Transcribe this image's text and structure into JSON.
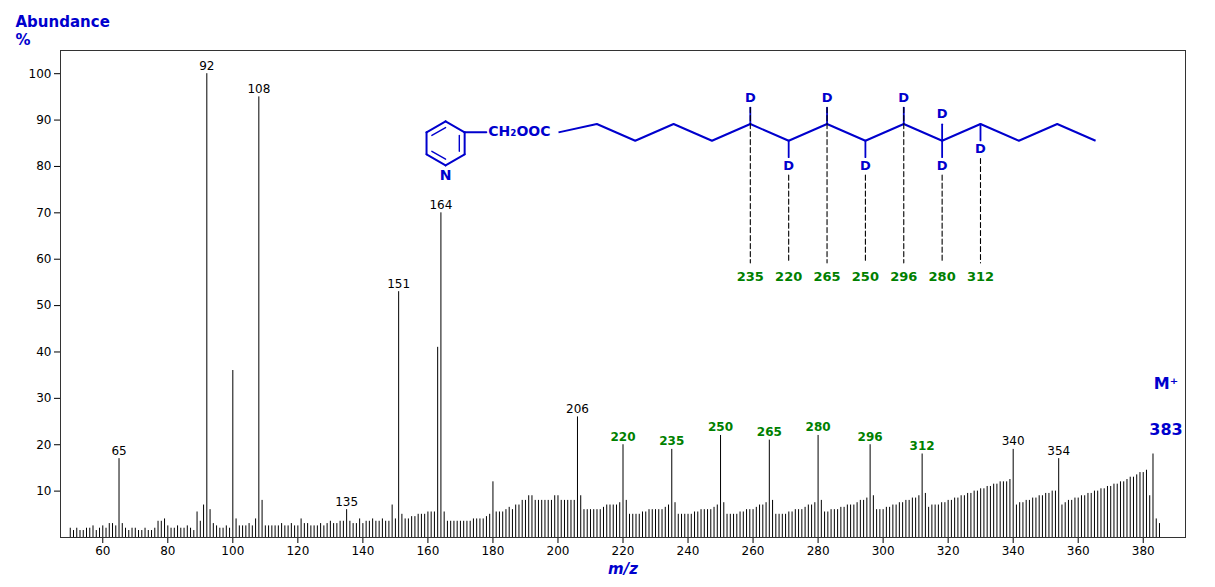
{
  "chart_data": {
    "type": "stem",
    "xlabel": "m/z",
    "ylabel_lines": [
      "Abundance",
      "%"
    ],
    "label_color": "#0000CD",
    "color": "#000000",
    "grid": false,
    "xlim": [
      47,
      393
    ],
    "ylim": [
      0,
      105
    ],
    "xticks": [
      60,
      80,
      100,
      120,
      140,
      160,
      180,
      200,
      220,
      240,
      260,
      280,
      300,
      320,
      340,
      360,
      380
    ],
    "yticks": [
      10,
      20,
      30,
      40,
      50,
      60,
      70,
      80,
      90,
      100
    ],
    "x": [
      50,
      51,
      52,
      53,
      54,
      55,
      56,
      57,
      58,
      59,
      60,
      61,
      62,
      63,
      64,
      65,
      66,
      67,
      68,
      69,
      70,
      71,
      72,
      73,
      74,
      75,
      76,
      77,
      78,
      79,
      80,
      81,
      82,
      83,
      84,
      85,
      86,
      87,
      88,
      89,
      90,
      91,
      92,
      93,
      94,
      95,
      96,
      97,
      98,
      99,
      100,
      101,
      102,
      103,
      104,
      105,
      106,
      107,
      108,
      109,
      110,
      111,
      112,
      113,
      114,
      115,
      116,
      117,
      118,
      119,
      120,
      121,
      122,
      123,
      124,
      125,
      126,
      127,
      128,
      129,
      130,
      131,
      132,
      133,
      134,
      135,
      136,
      137,
      138,
      139,
      140,
      141,
      142,
      143,
      144,
      145,
      146,
      147,
      148,
      149,
      150,
      151,
      152,
      153,
      154,
      155,
      156,
      157,
      158,
      159,
      160,
      161,
      162,
      163,
      164,
      165,
      166,
      167,
      168,
      169,
      170,
      171,
      172,
      173,
      174,
      175,
      176,
      177,
      178,
      179,
      180,
      181,
      182,
      183,
      184,
      185,
      186,
      187,
      188,
      189,
      190,
      191,
      192,
      193,
      194,
      195,
      196,
      197,
      198,
      199,
      200,
      201,
      202,
      203,
      204,
      205,
      206,
      207,
      208,
      209,
      210,
      211,
      212,
      213,
      214,
      215,
      216,
      217,
      218,
      219,
      220,
      221,
      222,
      223,
      224,
      225,
      226,
      227,
      228,
      229,
      230,
      231,
      232,
      233,
      234,
      235,
      236,
      237,
      238,
      239,
      240,
      241,
      242,
      243,
      244,
      245,
      246,
      247,
      248,
      249,
      250,
      251,
      252,
      253,
      254,
      255,
      256,
      257,
      258,
      259,
      260,
      261,
      262,
      263,
      264,
      265,
      266,
      267,
      268,
      269,
      270,
      271,
      272,
      273,
      274,
      275,
      276,
      277,
      278,
      279,
      280,
      281,
      282,
      283,
      284,
      285,
      286,
      287,
      288,
      289,
      290,
      291,
      292,
      293,
      294,
      295,
      296,
      297,
      298,
      299,
      300,
      301,
      302,
      303,
      304,
      305,
      306,
      307,
      308,
      309,
      310,
      311,
      312,
      313,
      314,
      315,
      316,
      317,
      318,
      319,
      320,
      321,
      322,
      323,
      324,
      325,
      326,
      327,
      328,
      329,
      330,
      331,
      332,
      333,
      334,
      335,
      336,
      337,
      338,
      339,
      340,
      341,
      342,
      343,
      344,
      345,
      346,
      347,
      348,
      349,
      350,
      351,
      352,
      353,
      354,
      355,
      356,
      357,
      358,
      359,
      360,
      361,
      362,
      363,
      364,
      365,
      366,
      367,
      368,
      369,
      370,
      371,
      372,
      373,
      374,
      375,
      376,
      377,
      378,
      379,
      380,
      381,
      382,
      383,
      384,
      385
    ],
    "values": [
      2,
      1.5,
      2,
      1.5,
      1.5,
      2,
      2,
      2.5,
      1.5,
      2,
      2.5,
      2,
      3,
      3,
      2.5,
      17,
      3,
      2,
      1.5,
      2,
      2,
      1.5,
      1.5,
      2,
      1.5,
      1.5,
      2,
      3.5,
      3.5,
      4,
      2.5,
      2,
      2,
      2.5,
      2,
      2,
      2.5,
      2,
      1.5,
      5.5,
      3.5,
      7,
      100,
      6,
      3,
      2.5,
      2,
      2,
      2.5,
      2,
      36,
      4,
      2.5,
      2.5,
      2.5,
      3,
      2.5,
      4,
      95,
      8,
      2.5,
      2.5,
      2.5,
      2.5,
      2.5,
      3,
      2.5,
      2.5,
      3,
      2.5,
      2.5,
      4,
      3,
      3,
      2.5,
      2.5,
      2.5,
      3,
      2.5,
      3,
      3.5,
      3,
      3,
      3.5,
      3.5,
      6,
      3.5,
      3,
      3,
      4,
      3,
      3.5,
      3.5,
      4,
      3.5,
      3.5,
      4,
      3.5,
      3.5,
      7,
      4,
      53,
      5,
      4,
      4,
      4.5,
      4.5,
      5,
      5,
      5,
      5.5,
      5.5,
      5.5,
      41,
      70,
      5.5,
      3.5,
      3.5,
      3.5,
      3.5,
      3.5,
      3.5,
      3.5,
      3.5,
      4,
      4,
      4,
      4,
      4.5,
      5,
      12,
      5.5,
      5.5,
      5.5,
      6,
      6.5,
      6,
      7,
      7,
      8,
      8,
      9,
      9,
      8,
      8,
      8,
      8,
      8,
      8,
      9,
      9,
      8,
      8,
      8,
      8,
      8,
      26,
      9,
      6,
      6,
      6,
      6,
      6,
      6,
      6.5,
      7,
      7,
      7,
      7,
      7.5,
      20,
      8,
      5,
      5,
      5,
      5,
      5.5,
      5.5,
      6,
      6,
      6,
      6,
      6,
      6.5,
      7,
      19,
      7.5,
      5,
      5,
      5,
      5,
      5,
      5.5,
      5.5,
      6,
      6,
      6,
      6,
      6.5,
      7,
      22,
      7.5,
      5,
      5,
      5,
      5,
      5.5,
      5.5,
      6,
      6,
      6,
      6.5,
      7,
      7,
      7.5,
      21,
      8,
      5,
      5,
      5,
      5,
      5.5,
      5.5,
      6,
      6,
      6,
      6.5,
      7,
      7,
      7.5,
      22,
      8,
      5.5,
      5.5,
      6,
      6,
      6,
      6.5,
      6.5,
      7,
      7,
      7,
      7.5,
      8,
      8,
      8.5,
      20,
      9,
      6,
      6,
      6,
      6.5,
      6.5,
      7,
      7,
      7.5,
      7.5,
      8,
      8,
      8.5,
      8.5,
      9,
      18,
      9.5,
      6.5,
      7,
      7,
      7,
      7.5,
      7.5,
      8,
      8,
      8.5,
      8.5,
      9,
      9,
      9.5,
      9.5,
      10,
      10,
      10.5,
      10.5,
      11,
      11,
      11.5,
      11.5,
      12,
      12,
      12,
      12.5,
      19,
      7,
      7.5,
      7.5,
      8,
      8,
      8.5,
      8.5,
      9,
      9,
      9.5,
      9.5,
      10,
      10,
      17,
      7,
      7.5,
      8,
      8,
      8.5,
      8.5,
      9,
      9,
      9.5,
      9.5,
      10,
      10,
      10.5,
      10.5,
      11,
      11,
      11.5,
      11.5,
      12,
      12,
      12.5,
      13,
      13,
      13.5,
      14,
      14,
      14.5,
      9,
      18,
      4,
      3
    ],
    "peak_labels": [
      {
        "text": "65",
        "x": 65,
        "y": 17,
        "color": "#000000"
      },
      {
        "text": "92",
        "x": 92,
        "y": 100,
        "color": "#000000"
      },
      {
        "text": "108",
        "x": 108,
        "y": 95,
        "color": "#000000"
      },
      {
        "text": "135",
        "x": 135,
        "y": 6,
        "color": "#000000"
      },
      {
        "text": "151",
        "x": 151,
        "y": 53,
        "color": "#000000"
      },
      {
        "text": "164",
        "x": 164,
        "y": 70,
        "color": "#000000"
      },
      {
        "text": "206",
        "x": 206,
        "y": 26,
        "color": "#000000"
      },
      {
        "text": "340",
        "x": 340,
        "y": 19,
        "color": "#000000"
      },
      {
        "text": "354",
        "x": 354,
        "y": 17,
        "color": "#000000"
      },
      {
        "text": "220",
        "x": 220,
        "y": 20,
        "color": "#008000"
      },
      {
        "text": "235",
        "x": 235,
        "y": 19,
        "color": "#008000"
      },
      {
        "text": "250",
        "x": 250,
        "y": 22,
        "color": "#008000"
      },
      {
        "text": "265",
        "x": 265,
        "y": 21,
        "color": "#008000"
      },
      {
        "text": "280",
        "x": 280,
        "y": 22,
        "color": "#008000"
      },
      {
        "text": "296",
        "x": 296,
        "y": 20,
        "color": "#008000"
      },
      {
        "text": "312",
        "x": 312,
        "y": 18,
        "color": "#008000"
      }
    ],
    "annotations": [
      {
        "text": "M⁺",
        "x": 387,
        "y": 32,
        "color": "#0000CD"
      },
      {
        "text": "383",
        "x": 387,
        "y": 22,
        "color": "#0000CD"
      }
    ],
    "structure": {
      "color": "#0000CD",
      "ring_atom": "N",
      "group": "CH₂OOC",
      "substituent": "D",
      "fragment_color": "#008000",
      "fragments": [
        {
          "upper": "235",
          "lower": "220"
        },
        {
          "upper": "265",
          "lower": "250"
        },
        {
          "upper": "296",
          "lower": "280"
        },
        {
          "upper": null,
          "lower": "312"
        }
      ]
    }
  }
}
